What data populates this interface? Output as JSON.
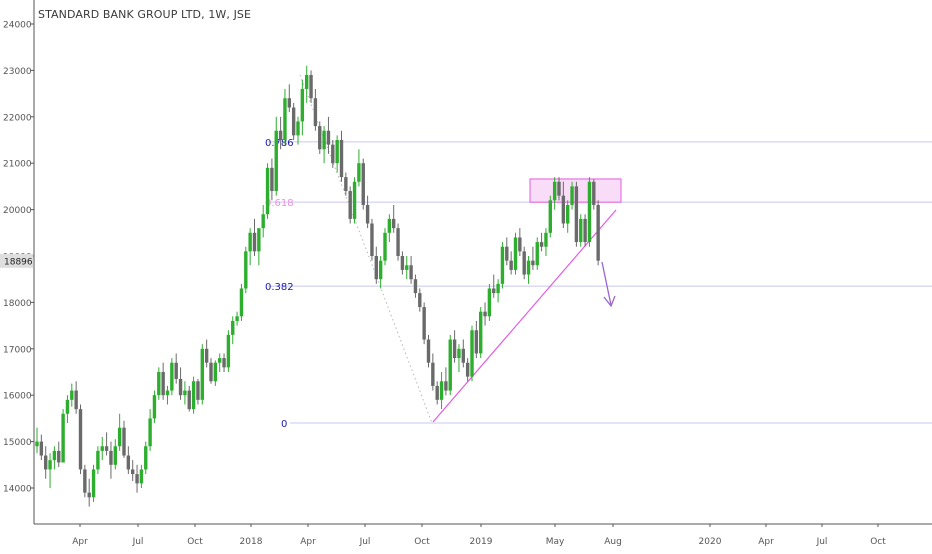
{
  "header": {
    "title": "STANDARD BANK GROUP LTD, 1W, JSE"
  },
  "price_badge": {
    "value": "18896",
    "color": "#dedede"
  },
  "colors": {
    "up": "#2eae2e",
    "down": "#6a6a6a",
    "fib_line": "#c8c8f2",
    "fib_label": "#1a1ab0",
    "fib_618_label": "#f58ce6",
    "trendline": "#e35be2",
    "resistance_fill": "#f7cdf4",
    "resistance_stroke": "#e35be2",
    "arrow": "#9966cc",
    "axis": "#555555",
    "axis_text": "#555555"
  },
  "chart_data": {
    "type": "candlestick",
    "y_axis": {
      "ticks": [
        14000,
        15000,
        16000,
        17000,
        18000,
        19000,
        20000,
        21000,
        22000,
        23000,
        24000
      ],
      "range": [
        13100,
        24350
      ],
      "side": "left"
    },
    "x_axis": {
      "ticks": [
        "Apr",
        "Jul",
        "Oct",
        "2018",
        "Apr",
        "Jul",
        "Oct",
        "2019",
        "May",
        "Aug",
        "2020",
        "Apr",
        "Jul",
        "Oct"
      ]
    },
    "fib_levels": [
      {
        "label": "0.786",
        "value": 21460
      },
      {
        "label": "0.618",
        "value": 20160
      },
      {
        "label": "0.382",
        "value": 18350
      },
      {
        "label": "0",
        "value": 15400
      }
    ],
    "resistance_zone": {
      "top": 20660,
      "bottom": 20160
    },
    "series": [
      [
        14900,
        15300,
        14750,
        15000
      ],
      [
        15000,
        15150,
        14600,
        14700
      ],
      [
        14700,
        14900,
        14200,
        14400
      ],
      [
        14400,
        14750,
        14000,
        14600
      ],
      [
        14600,
        14900,
        14400,
        14800
      ],
      [
        14800,
        15000,
        14450,
        14550
      ],
      [
        14550,
        15700,
        14550,
        15600
      ],
      [
        15600,
        16000,
        15400,
        15900
      ],
      [
        15900,
        16250,
        15750,
        16100
      ],
      [
        16100,
        16300,
        15600,
        15700
      ],
      [
        15700,
        15800,
        14300,
        14400
      ],
      [
        14400,
        14500,
        13800,
        13900
      ],
      [
        13900,
        14200,
        13600,
        13800
      ],
      [
        13800,
        14500,
        13700,
        14400
      ],
      [
        14400,
        14900,
        14300,
        14800
      ],
      [
        14800,
        15100,
        14600,
        14900
      ],
      [
        14900,
        15200,
        14700,
        14800
      ],
      [
        14800,
        15000,
        14200,
        14500
      ],
      [
        14500,
        15050,
        14400,
        14900
      ],
      [
        14900,
        15600,
        14800,
        15300
      ],
      [
        15300,
        15450,
        14650,
        14700
      ],
      [
        14700,
        14900,
        14300,
        14400
      ],
      [
        14400,
        14600,
        14150,
        14300
      ],
      [
        14300,
        14500,
        13900,
        14100
      ],
      [
        14100,
        14500,
        14000,
        14400
      ],
      [
        14400,
        15000,
        14300,
        14900
      ],
      [
        14900,
        15700,
        14800,
        15500
      ],
      [
        15500,
        16100,
        15400,
        16000
      ],
      [
        16000,
        16600,
        15900,
        16500
      ],
      [
        16500,
        16700,
        15900,
        16000
      ],
      [
        16000,
        16200,
        15800,
        16100
      ],
      [
        16100,
        16800,
        16000,
        16700
      ],
      [
        16700,
        16900,
        16250,
        16350
      ],
      [
        16350,
        16600,
        15900,
        16000
      ],
      [
        16000,
        16300,
        15800,
        16100
      ],
      [
        16100,
        16200,
        15650,
        15700
      ],
      [
        15700,
        16400,
        15600,
        16300
      ],
      [
        16300,
        16350,
        15800,
        15900
      ],
      [
        15900,
        17100,
        15800,
        17000
      ],
      [
        17000,
        17200,
        16600,
        16700
      ],
      [
        16700,
        16800,
        16250,
        16300
      ],
      [
        16300,
        16750,
        16200,
        16700
      ],
      [
        16700,
        16900,
        16500,
        16800
      ],
      [
        16800,
        16900,
        16500,
        16600
      ],
      [
        16600,
        17400,
        16500,
        17300
      ],
      [
        17300,
        17700,
        17100,
        17600
      ],
      [
        17600,
        17800,
        17500,
        17700
      ],
      [
        17700,
        18400,
        17600,
        18300
      ],
      [
        18300,
        19200,
        18200,
        19100
      ],
      [
        19100,
        19600,
        18800,
        19500
      ],
      [
        19500,
        19800,
        19000,
        19100
      ],
      [
        19100,
        19300,
        18800,
        19600
      ],
      [
        19600,
        20100,
        19400,
        19900
      ],
      [
        19900,
        21000,
        19800,
        20900
      ],
      [
        20900,
        21100,
        20200,
        20400
      ],
      [
        20400,
        22000,
        20300,
        21700
      ],
      [
        21700,
        22000,
        21300,
        21500
      ],
      [
        21500,
        22600,
        21400,
        22400
      ],
      [
        22400,
        22700,
        22100,
        22200
      ],
      [
        22200,
        22300,
        21500,
        21600
      ],
      [
        21600,
        22000,
        21400,
        21900
      ],
      [
        21900,
        22800,
        21600,
        22600
      ],
      [
        22600,
        23100,
        22300,
        22900
      ],
      [
        22900,
        23000,
        22300,
        22400
      ],
      [
        22400,
        22600,
        21700,
        21800
      ],
      [
        21800,
        21900,
        21200,
        21300
      ],
      [
        21300,
        21800,
        21000,
        21700
      ],
      [
        21700,
        22000,
        21200,
        21400
      ],
      [
        21400,
        21500,
        20900,
        21000
      ],
      [
        21000,
        21600,
        20800,
        21500
      ],
      [
        21500,
        21700,
        20600,
        20700
      ],
      [
        20700,
        20800,
        20300,
        20400
      ],
      [
        20400,
        20500,
        19700,
        19800
      ],
      [
        19800,
        20700,
        19700,
        20600
      ],
      [
        20600,
        21300,
        20500,
        21000
      ],
      [
        21000,
        21100,
        20000,
        20100
      ],
      [
        20100,
        20300,
        19600,
        19700
      ],
      [
        19700,
        19800,
        18900,
        19000
      ],
      [
        19000,
        19200,
        18400,
        18500
      ],
      [
        18500,
        19000,
        18300,
        18900
      ],
      [
        18900,
        19600,
        18800,
        19500
      ],
      [
        19500,
        19900,
        19300,
        19800
      ],
      [
        19800,
        20100,
        19500,
        19600
      ],
      [
        19600,
        19700,
        18900,
        19000
      ],
      [
        19000,
        19100,
        18600,
        18700
      ],
      [
        18700,
        19000,
        18500,
        18800
      ],
      [
        18800,
        19000,
        18400,
        18500
      ],
      [
        18500,
        18600,
        18100,
        18200
      ],
      [
        18200,
        18300,
        17800,
        17900
      ],
      [
        17900,
        18000,
        17100,
        17200
      ],
      [
        17200,
        17300,
        16600,
        16700
      ],
      [
        16700,
        16900,
        16100,
        16200
      ],
      [
        16200,
        16300,
        15800,
        15900
      ],
      [
        15900,
        16500,
        15700,
        16300
      ],
      [
        16300,
        16600,
        16000,
        16100
      ],
      [
        16100,
        17300,
        16000,
        17200
      ],
      [
        17200,
        17400,
        16700,
        16800
      ],
      [
        16800,
        17100,
        16500,
        17000
      ],
      [
        17000,
        17200,
        16600,
        16700
      ],
      [
        16700,
        16800,
        16300,
        16400
      ],
      [
        16400,
        17500,
        16300,
        17400
      ],
      [
        17400,
        17600,
        16800,
        16900
      ],
      [
        16900,
        17900,
        16800,
        17800
      ],
      [
        17800,
        18000,
        17500,
        17700
      ],
      [
        17700,
        18400,
        17600,
        18300
      ],
      [
        18300,
        18600,
        18100,
        18200
      ],
      [
        18200,
        18500,
        18000,
        18400
      ],
      [
        18400,
        19300,
        18300,
        19200
      ],
      [
        19200,
        19400,
        18800,
        18900
      ],
      [
        18900,
        19100,
        18600,
        18700
      ],
      [
        18700,
        19500,
        18600,
        19400
      ],
      [
        19400,
        19600,
        19000,
        19100
      ],
      [
        19100,
        19200,
        18500,
        18600
      ],
      [
        18600,
        19000,
        18400,
        18900
      ],
      [
        18900,
        19200,
        18700,
        18800
      ],
      [
        18800,
        19400,
        18700,
        19300
      ],
      [
        19300,
        19500,
        19100,
        19200
      ],
      [
        19200,
        19600,
        19000,
        19500
      ],
      [
        19500,
        20300,
        19400,
        20200
      ],
      [
        20200,
        20700,
        20000,
        20600
      ],
      [
        20600,
        20700,
        20200,
        20300
      ],
      [
        20300,
        20600,
        19600,
        19700
      ],
      [
        19700,
        20200,
        19500,
        20100
      ],
      [
        20100,
        20600,
        20000,
        20500
      ],
      [
        20500,
        20600,
        19200,
        19300
      ],
      [
        19300,
        19900,
        19200,
        19800
      ],
      [
        19800,
        19900,
        19200,
        19300
      ],
      [
        19300,
        20700,
        19200,
        20600
      ],
      [
        20600,
        20650,
        20000,
        20100
      ],
      [
        20100,
        20200,
        18800,
        18900
      ]
    ]
  }
}
